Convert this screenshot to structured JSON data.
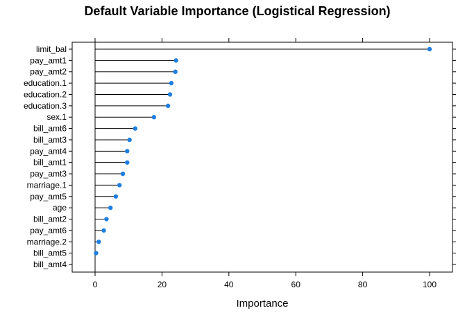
{
  "chart_data": {
    "type": "dot",
    "title": "Default Variable Importance (Logistical Regression)",
    "xlabel": "Importance",
    "ylabel": "",
    "xlim": [
      -7,
      107
    ],
    "xticks": [
      0,
      20,
      40,
      60,
      80,
      100
    ],
    "grid": false,
    "categories": [
      "limit_bal",
      "pay_amt1",
      "pay_amt2",
      "education.1",
      "education.2",
      "education.3",
      "sex.1",
      "bill_amt6",
      "bill_amt3",
      "pay_amt4",
      "bill_amt1",
      "pay_amt3",
      "marriage.1",
      "pay_amt5",
      "age",
      "bill_amt2",
      "pay_amt6",
      "marriage.2",
      "bill_amt5",
      "bill_amt4"
    ],
    "values": [
      100,
      24.2,
      24.0,
      22.8,
      22.4,
      21.8,
      17.6,
      12.0,
      10.3,
      9.6,
      9.6,
      8.3,
      7.3,
      6.2,
      4.6,
      3.4,
      2.6,
      1.1,
      0.3,
      0
    ],
    "marker_color": "#1E7FE0",
    "line_color": "#000000"
  }
}
